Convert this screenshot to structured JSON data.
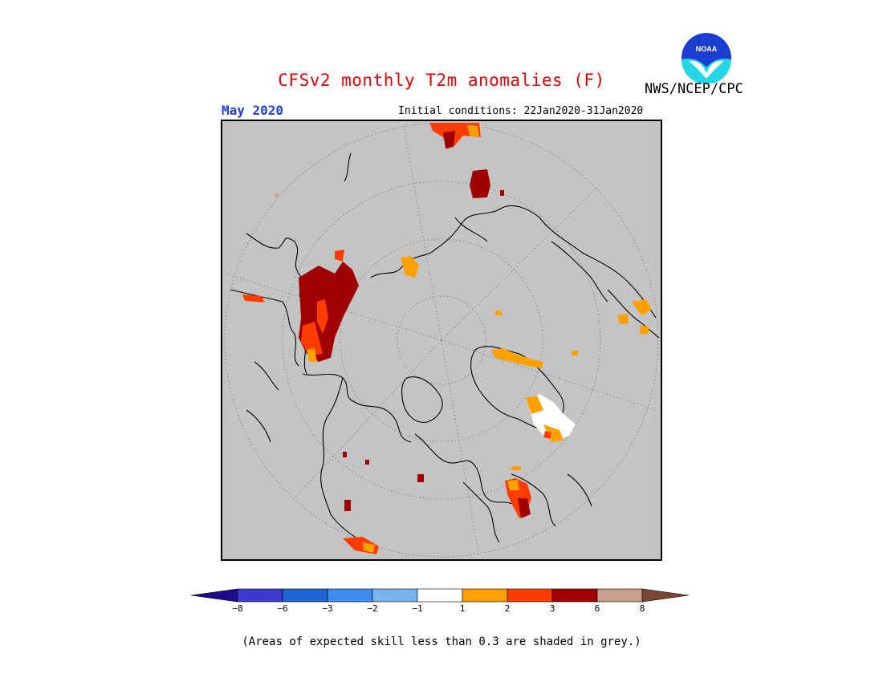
{
  "title": "CFSv2 monthly T2m anomalies (F)",
  "agency": "NWS/NCEP/CPC",
  "logo_text": "NOAA",
  "target_month": "May 2020",
  "initial_conditions": "Initial conditions: 22Jan2020-31Jan2020",
  "colorbar": {
    "colors": [
      "#1e0a8c",
      "#3a3acd",
      "#1e64d2",
      "#3c8cf0",
      "#78b4f0",
      "#ffffff",
      "#ffa000",
      "#ff3c00",
      "#a00000",
      "#c8a08c",
      "#784632"
    ],
    "tick_labels": [
      "−8",
      "−6",
      "−3",
      "−2",
      "−1",
      "1",
      "2",
      "3",
      "6",
      "8"
    ]
  },
  "footnote": "(Areas of expected skill less than 0.3 are shaded in grey.)"
}
